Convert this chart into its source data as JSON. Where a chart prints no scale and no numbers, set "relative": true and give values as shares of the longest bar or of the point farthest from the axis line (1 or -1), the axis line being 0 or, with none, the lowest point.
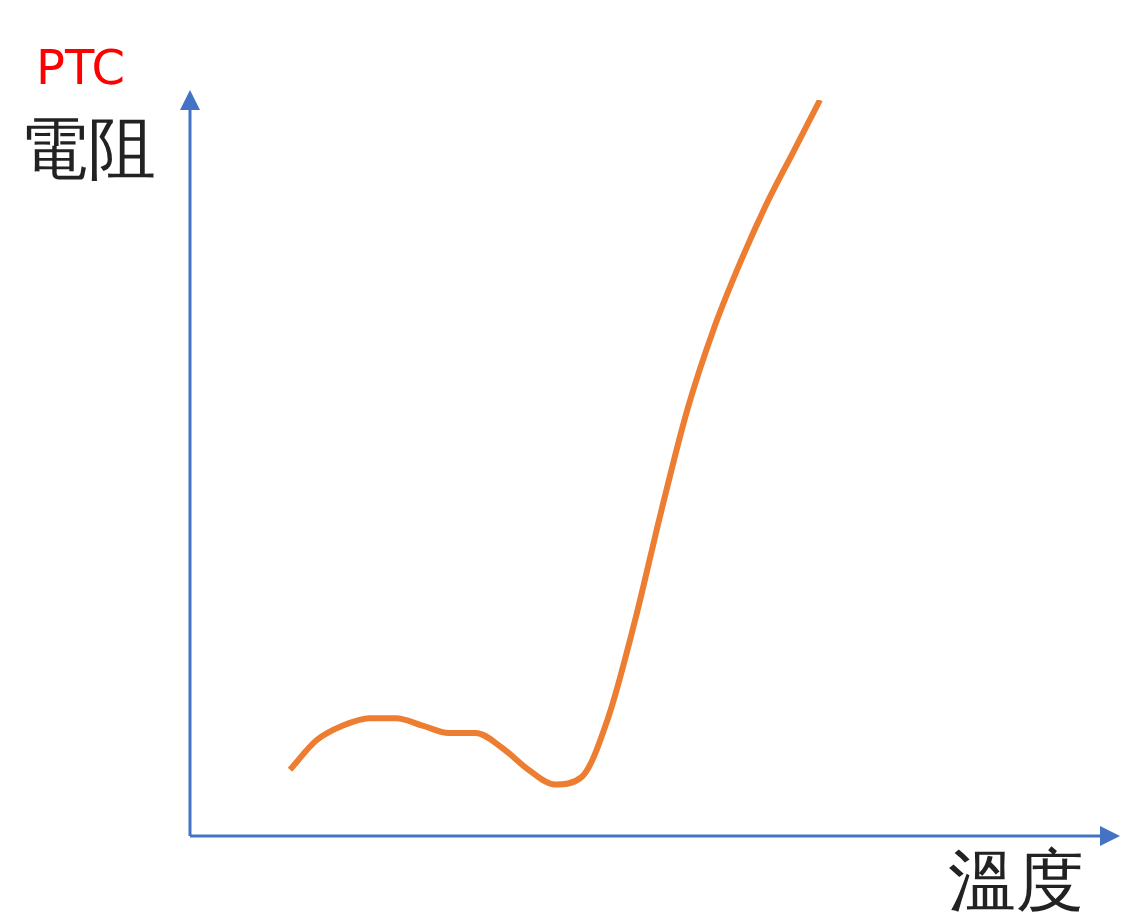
{
  "chart_data": {
    "type": "line",
    "title": "PTC",
    "ylabel": "電阻",
    "xlabel": "溫度",
    "relative": true,
    "marker": "none",
    "categories": [
      null,
      null,
      null,
      null,
      null,
      null,
      null,
      null,
      null,
      null,
      null,
      null,
      null,
      null,
      null,
      null,
      null,
      null,
      null,
      null,
      null
    ],
    "series": [
      {
        "color": "#ed7d31",
        "values": [
          0.09,
          0.13,
          0.15,
          0.16,
          0.16,
          0.15,
          0.14,
          0.14,
          0.12,
          0.09,
          0.07,
          0.08,
          0.16,
          0.29,
          0.44,
          0.58,
          0.69,
          0.78,
          0.86,
          0.93,
          1
        ]
      }
    ]
  }
}
